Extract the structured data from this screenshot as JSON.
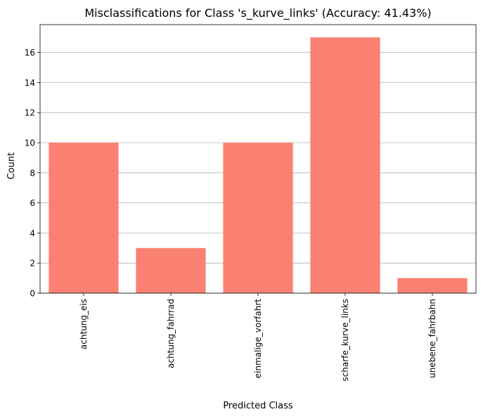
{
  "chart_data": {
    "type": "bar",
    "title": "Misclassifications for Class 's_kurve_links' (Accuracy: 41.43%)",
    "xlabel": "Predicted Class",
    "ylabel": "Count",
    "categories": [
      "achtung_eis",
      "achtung_fahrrad",
      "einmalige_vorfahrt",
      "scharfe_kurve_links",
      "unebene_fahrbahn"
    ],
    "values": [
      10,
      3,
      10,
      17,
      1
    ],
    "yticks": [
      0,
      2,
      4,
      6,
      8,
      10,
      12,
      14,
      16
    ],
    "ylim": [
      0,
      17.85
    ],
    "grid": "y",
    "bar_color": "#fa8072",
    "legend": "none"
  }
}
